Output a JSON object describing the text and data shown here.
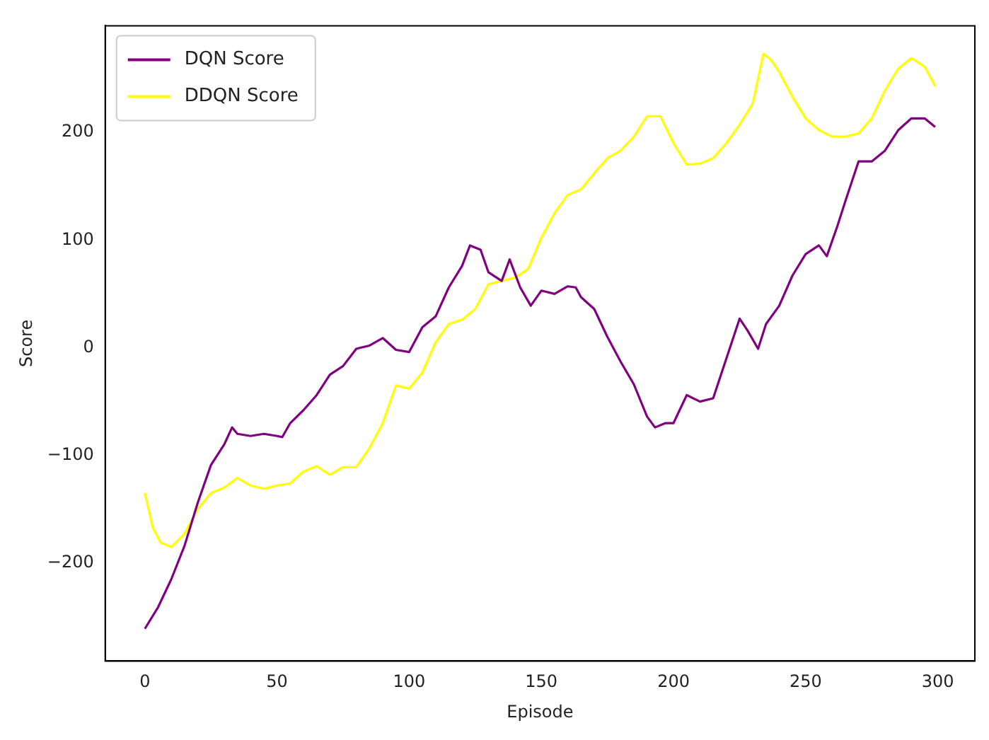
{
  "chart_data": {
    "type": "line",
    "xlabel": "Episode",
    "ylabel": "Score",
    "xlim": [
      -15,
      314
    ],
    "ylim": [
      -291,
      299
    ],
    "xticks": [
      0,
      50,
      100,
      150,
      200,
      250,
      300
    ],
    "yticks": [
      -200,
      -100,
      0,
      100,
      200
    ],
    "grid": false,
    "legend": "top left",
    "marker": "none",
    "line_style": "solid",
    "series": [
      {
        "name": "DQN Score",
        "color": "#800080",
        "x": [
          0,
          5,
          10,
          15,
          20,
          25,
          30,
          33,
          35,
          40,
          45,
          50,
          52,
          55,
          60,
          65,
          70,
          75,
          80,
          85,
          90,
          95,
          100,
          105,
          110,
          115,
          120,
          123,
          127,
          130,
          135,
          138,
          142,
          146,
          150,
          155,
          160,
          163,
          165,
          170,
          175,
          180,
          185,
          190,
          193,
          197,
          200,
          205,
          210,
          215,
          220,
          225,
          228,
          232,
          235,
          240,
          245,
          250,
          255,
          258,
          262,
          265,
          270,
          275,
          280,
          285,
          290,
          295,
          299
        ],
        "values": [
          -261,
          -241,
          -215,
          -184,
          -144,
          -109,
          -90,
          -74,
          -80,
          -82,
          -80,
          -82,
          -83,
          -70,
          -58,
          -44,
          -25,
          -17,
          -1,
          2,
          9,
          -2,
          -4,
          19,
          29,
          56,
          76,
          95,
          91,
          70,
          62,
          82,
          56,
          39,
          53,
          50,
          57,
          56,
          47,
          36,
          10,
          -13,
          -34,
          -64,
          -74,
          -70,
          -70,
          -44,
          -50,
          -47,
          -10,
          27,
          16,
          -1,
          22,
          39,
          67,
          87,
          95,
          85,
          113,
          136,
          173,
          173,
          183,
          202,
          213,
          213,
          205
        ]
      },
      {
        "name": "DDQN Score",
        "color": "#ffff00",
        "x": [
          0,
          3,
          6,
          10,
          15,
          20,
          25,
          30,
          35,
          40,
          45,
          50,
          55,
          60,
          65,
          70,
          75,
          80,
          85,
          90,
          95,
          100,
          105,
          110,
          115,
          120,
          125,
          130,
          135,
          140,
          145,
          150,
          155,
          160,
          165,
          170,
          175,
          180,
          185,
          190,
          195,
          200,
          205,
          210,
          215,
          220,
          225,
          230,
          234,
          237,
          240,
          245,
          250,
          255,
          260,
          265,
          270,
          275,
          280,
          285,
          290,
          295,
          299
        ],
        "values": [
          -135,
          -167,
          -181,
          -185,
          -173,
          -150,
          -135,
          -130,
          -121,
          -128,
          -131,
          -128,
          -126,
          -115,
          -110,
          -118,
          -111,
          -111,
          -93,
          -70,
          -35,
          -38,
          -23,
          5,
          22,
          26,
          36,
          59,
          62,
          65,
          73,
          102,
          125,
          142,
          147,
          162,
          176,
          183,
          196,
          215,
          215,
          190,
          170,
          171,
          176,
          190,
          207,
          227,
          273,
          267,
          256,
          233,
          213,
          202,
          196,
          196,
          199,
          213,
          239,
          259,
          269,
          261,
          243
        ]
      }
    ]
  }
}
